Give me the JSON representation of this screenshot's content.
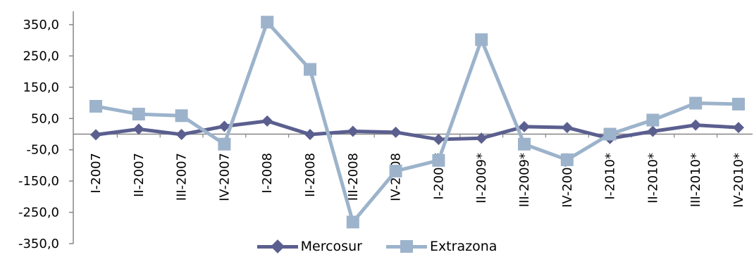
{
  "chart_data": {
    "type": "line",
    "categories": [
      "I-2007",
      "II-2007",
      "III-2007",
      "IV-2007",
      "I-2008",
      "II-2008",
      "III-2008",
      "IV-2008",
      "I-2009*",
      "II-2009*",
      "III-2009*",
      "IV-2009*",
      "I-2010*",
      "II-2010*",
      "III-2010*",
      "IV-2010*"
    ],
    "series": [
      {
        "name": "Mercosur",
        "color": "#5b5f8f",
        "marker": "diamond",
        "values": [
          -2,
          16,
          -1,
          25,
          42,
          -1,
          9,
          6,
          -17,
          -13,
          24,
          21,
          -14,
          9,
          29,
          21
        ]
      },
      {
        "name": "Extrazona",
        "color": "#9cb3cb",
        "marker": "square",
        "values": [
          89,
          64,
          59,
          -32,
          358,
          207,
          -281,
          -118,
          -84,
          302,
          -32,
          -82,
          0,
          45,
          99,
          96
        ]
      }
    ],
    "yticks": [
      "350,0",
      "250,0",
      "150,0",
      "50,0",
      "-50,0",
      "-150,0",
      "-250,0",
      "-350,0"
    ],
    "ylim": [
      -350,
      350
    ],
    "legend": "bottom-center",
    "grid": false
  }
}
